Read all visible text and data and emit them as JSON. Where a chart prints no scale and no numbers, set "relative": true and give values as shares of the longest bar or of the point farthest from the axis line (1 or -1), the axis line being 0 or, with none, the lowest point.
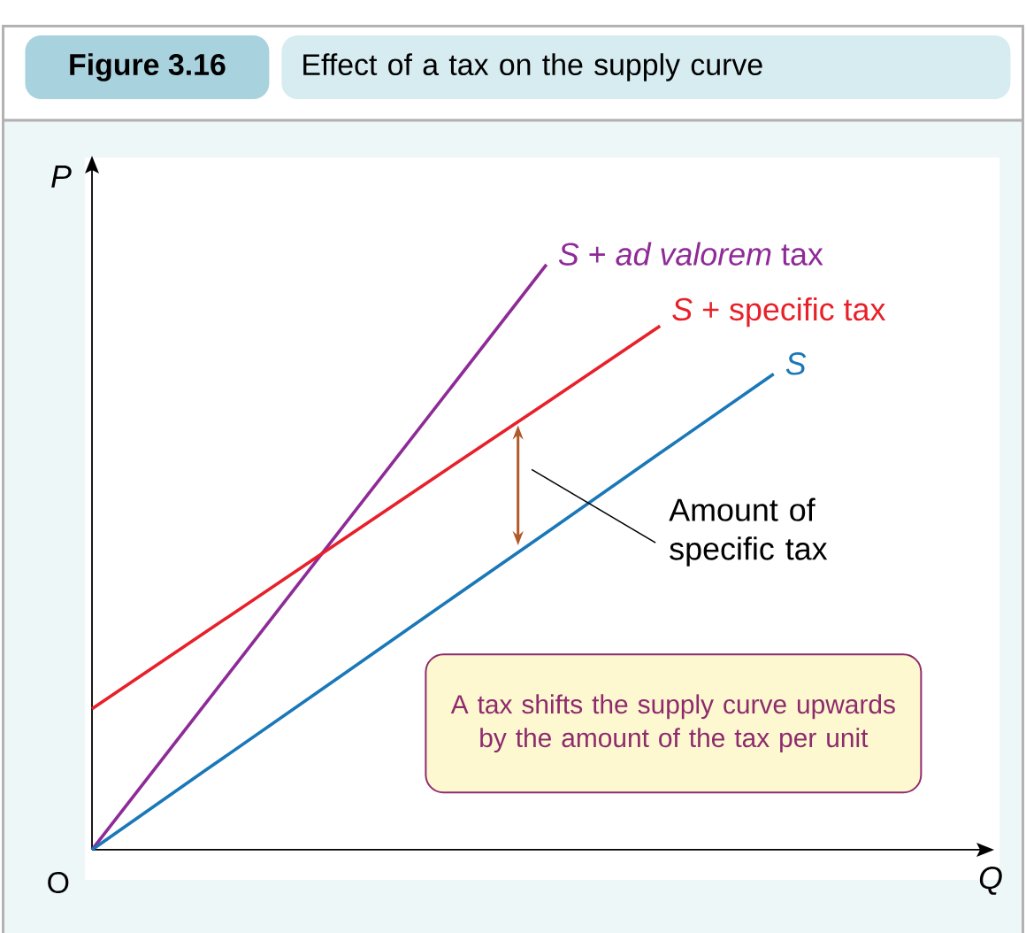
{
  "chart_data": {
    "type": "line",
    "title": "Figure 3.16",
    "subtitle": "Effect of a tax on the supply curve",
    "xlabel": "*Q*",
    "ylabel": "*P*",
    "relative": true,
    "categories": [
      null,
      null,
      null,
      null,
      null,
      null,
      null,
      null
    ],
    "series": [
      {
        "name": "*S* + *ad valorem* tax",
        "color": "#8e2b97",
        "values": [
          0,
          0.25,
          0.5,
          0.75,
          1,
          null,
          null,
          null
        ]
      },
      {
        "name": "*S* + specific tax",
        "color": "#e8202a",
        "values": [
          0.241,
          0.372,
          0.503,
          0.634,
          0.764,
          0.895,
          null,
          null
        ]
      },
      {
        "name": "*S*",
        "color": "#1a78b8",
        "values": [
          0,
          0.136,
          0.271,
          0.407,
          0.542,
          0.678,
          0.813,
          null
        ]
      }
    ],
    "annotations": [
      "Amount of specific tax",
      "A tax shifts the supply curve upwards by the amount of the tax per unit",
      "O"
    ]
  }
}
